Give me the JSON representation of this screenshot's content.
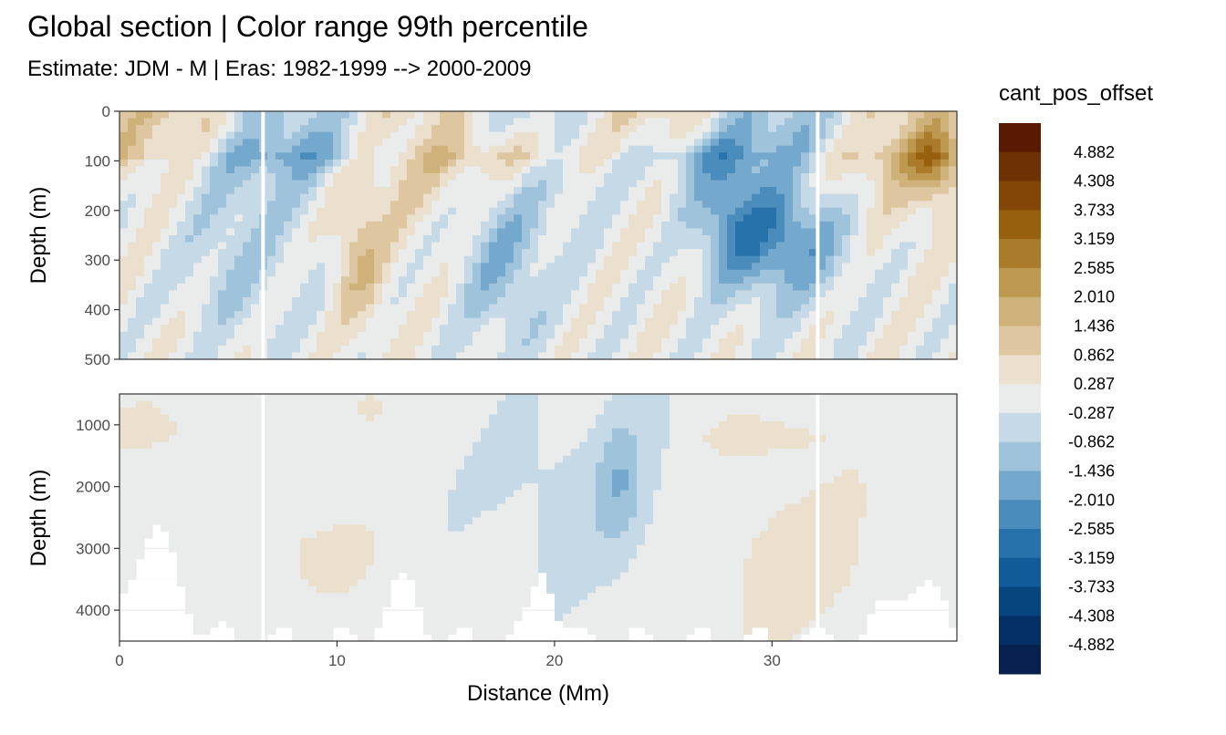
{
  "chart_data": {
    "type": "heatmap",
    "title": "Global section | Color range 99th percentile",
    "subtitle": "Estimate: JDM - M | Eras: 1982-1999 --> 2000-2009",
    "xlabel": "Distance (Mm)",
    "ylabel": "Depth (m)",
    "xlim": [
      0,
      38.5
    ],
    "x_ticks": [
      "0",
      "10",
      "20",
      "30"
    ],
    "x_tick_values": [
      0,
      10,
      20,
      30
    ],
    "panels": [
      {
        "ylabel": "Depth (m)",
        "ylim": [
          0,
          500
        ],
        "y_ticks": [
          "0",
          "100",
          "200",
          "300",
          "400",
          "500"
        ],
        "y_tick_values": [
          0,
          100,
          200,
          300,
          400,
          500
        ]
      },
      {
        "ylabel": "Depth (m)",
        "ylim": [
          500,
          4500
        ],
        "y_ticks": [
          "1000",
          "2000",
          "3000",
          "4000"
        ],
        "y_tick_values": [
          1000,
          2000,
          3000,
          4000
        ]
      }
    ],
    "legend": {
      "title": "cant_pos_offset",
      "position": "right",
      "labels": [
        "4.882",
        "4.308",
        "3.733",
        "3.159",
        "2.585",
        "2.010",
        "1.436",
        "0.862",
        "0.287",
        "-0.287",
        "-0.862",
        "-1.436",
        "-2.010",
        "-2.585",
        "-3.159",
        "-3.733",
        "-4.308",
        "-4.882"
      ],
      "colors": [
        "#5a1a02",
        "#6e3104",
        "#834607",
        "#96600f",
        "#a97b2a",
        "#bd9950",
        "#cfb27a",
        "#dec6a0",
        "#ebdfcd",
        "#e9ecea",
        "#c6d9e7",
        "#9fc3da",
        "#74a9cd",
        "#4a8cbc",
        "#2772aa",
        "#125b99",
        "#07457f",
        "#053067",
        "#08204e"
      ]
    },
    "grid": true,
    "data_gaps_x": [
      6.6,
      32.1
    ]
  }
}
